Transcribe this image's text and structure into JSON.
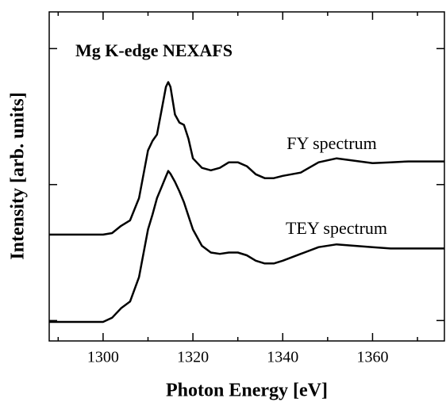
{
  "chart_data": {
    "type": "line",
    "title": "Mg K-edge NEXAFS",
    "xlabel": "Photon Energy [eV]",
    "ylabel": "Intensity [arb. units]",
    "xlim": [
      1288,
      1376
    ],
    "xticks": [
      1300,
      1320,
      1340,
      1360
    ],
    "xminor_ticks": [
      1290,
      1310,
      1330,
      1350,
      1370
    ],
    "ylim": [
      -0.15,
      2.27
    ],
    "yticks": [
      0,
      1,
      2
    ],
    "ytick_labels": false,
    "x": [
      1288,
      1300,
      1302,
      1304,
      1306,
      1308,
      1310,
      1311,
      1312,
      1313,
      1314,
      1314.5,
      1315,
      1316,
      1317,
      1318,
      1319,
      1320,
      1322,
      1324,
      1326,
      1328,
      1330,
      1332,
      1334,
      1336,
      1338,
      1340,
      1344,
      1348,
      1352,
      1356,
      1360,
      1364,
      1368,
      1372,
      1376
    ],
    "series": [
      {
        "name": "FY spectrum",
        "color": "#000000",
        "values": [
          0.632,
          0.632,
          0.643,
          0.696,
          0.737,
          0.901,
          1.251,
          1.322,
          1.368,
          1.544,
          1.719,
          1.754,
          1.719,
          1.515,
          1.456,
          1.439,
          1.339,
          1.193,
          1.123,
          1.105,
          1.123,
          1.164,
          1.164,
          1.135,
          1.076,
          1.047,
          1.047,
          1.064,
          1.088,
          1.164,
          1.193,
          1.175,
          1.158,
          1.164,
          1.17,
          1.17,
          1.17
        ]
      },
      {
        "name": "TEY spectrum",
        "color": "#000000",
        "values": [
          -0.01,
          -0.01,
          0.02,
          0.09,
          0.14,
          0.32,
          0.67,
          0.78,
          0.9,
          0.98,
          1.06,
          1.1,
          1.08,
          1.02,
          0.95,
          0.87,
          0.77,
          0.67,
          0.55,
          0.5,
          0.49,
          0.5,
          0.5,
          0.48,
          0.44,
          0.42,
          0.42,
          0.44,
          0.49,
          0.54,
          0.56,
          0.55,
          0.54,
          0.53,
          0.53,
          0.53,
          0.53
        ]
      }
    ]
  }
}
